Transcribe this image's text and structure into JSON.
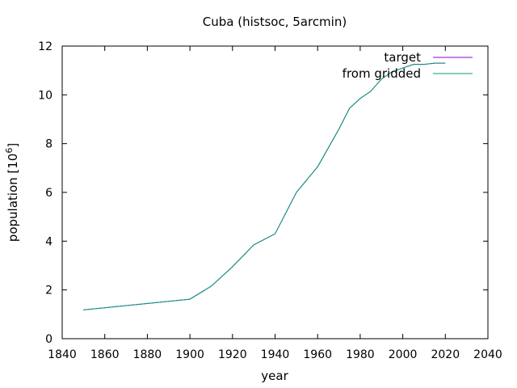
{
  "chart_data": {
    "type": "line",
    "title": "Cuba (histsoc, 5arcmin)",
    "xlabel": "year",
    "ylabel": "population [10",
    "ylabel_exponent": "6",
    "ylabel_close": "]",
    "xlim": [
      1840,
      2040
    ],
    "ylim": [
      0,
      12
    ],
    "xticks": [
      "1840",
      "1860",
      "1880",
      "1900",
      "1920",
      "1940",
      "1960",
      "1980",
      "2000",
      "2020",
      "2040"
    ],
    "yticks": [
      "0",
      "2",
      "4",
      "6",
      "8",
      "10",
      "12"
    ],
    "grid": false,
    "legend_position": "top-right",
    "series": [
      {
        "name": "target",
        "color": "#9400d3",
        "x": [
          1850,
          1900,
          1910,
          1920,
          1930,
          1940,
          1950,
          1960,
          1970,
          1975,
          1980,
          1985,
          1990,
          1995,
          2000,
          2005,
          2010,
          2015,
          2020
        ],
        "y": [
          1.18,
          1.62,
          2.15,
          2.95,
          3.85,
          4.3,
          6.0,
          7.05,
          8.6,
          9.45,
          9.85,
          10.15,
          10.65,
          10.95,
          11.1,
          11.25,
          11.25,
          11.3,
          11.3
        ]
      },
      {
        "name": "from gridded",
        "color": "#009e73",
        "x": [
          1850,
          1900,
          1910,
          1920,
          1930,
          1940,
          1950,
          1960,
          1970,
          1975,
          1980,
          1985,
          1990,
          1995,
          2000,
          2005,
          2010,
          2015,
          2020
        ],
        "y": [
          1.18,
          1.62,
          2.15,
          2.95,
          3.85,
          4.3,
          6.0,
          7.05,
          8.6,
          9.45,
          9.85,
          10.15,
          10.65,
          10.95,
          11.1,
          11.25,
          11.25,
          11.3,
          11.3
        ]
      }
    ]
  }
}
